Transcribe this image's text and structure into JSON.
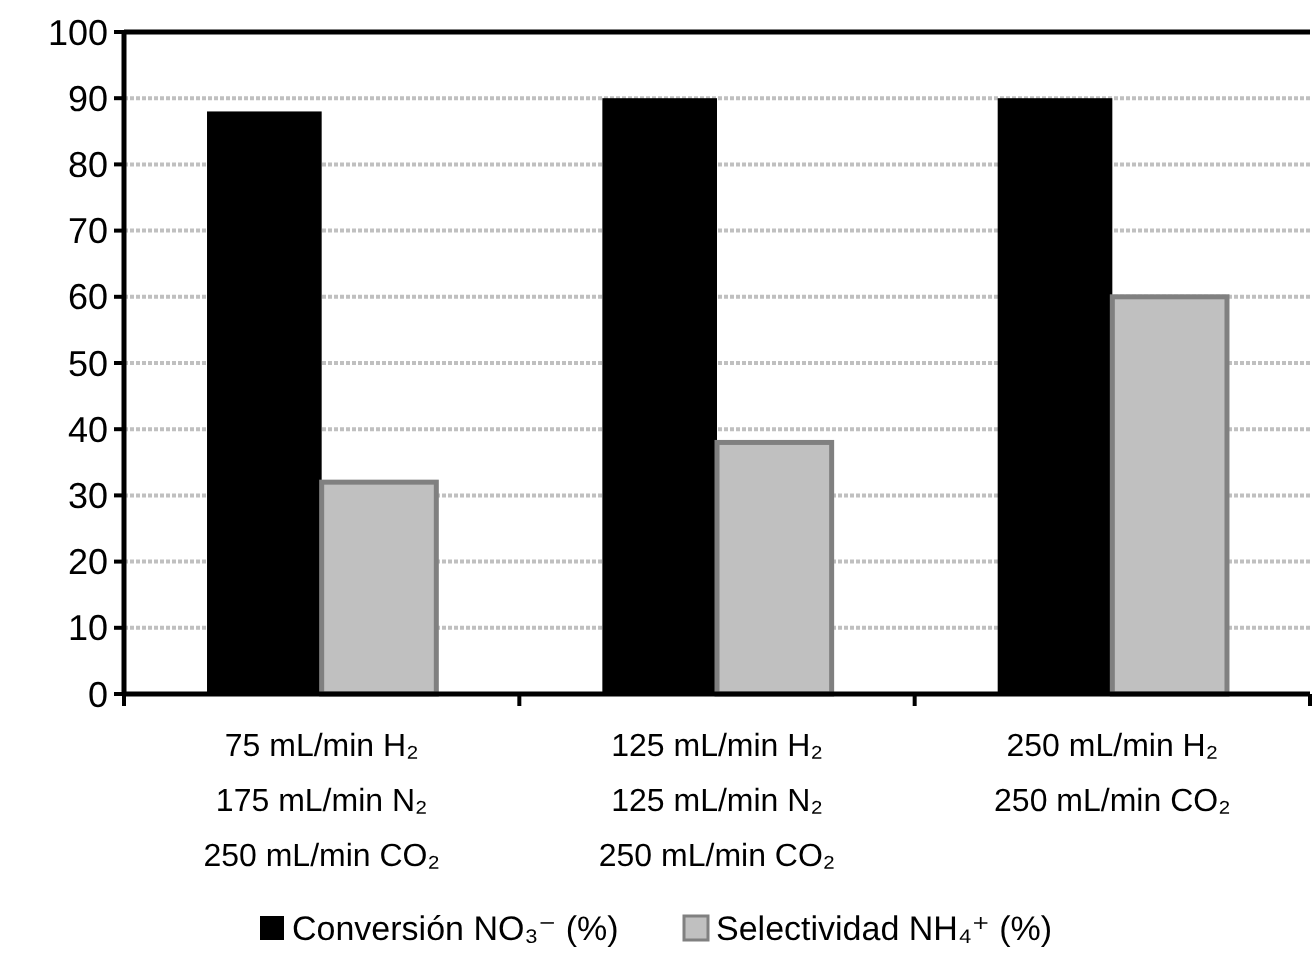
{
  "chart_data": {
    "type": "bar",
    "categories": [
      "75 mL/min H₂\n175 mL/min N₂\n250 mL/min CO₂",
      "125 mL/min H₂\n125 mL/min N₂\n250 mL/min CO₂",
      "250 mL/min H₂\n250 mL/min CO₂"
    ],
    "series": [
      {
        "name": "Conversión NO₃⁻ (%)",
        "color": "#000000",
        "values": [
          88,
          90,
          90
        ]
      },
      {
        "name": "Selectividad NH₄⁺ (%)",
        "color": "#c0c0c0",
        "values": [
          32,
          38,
          60
        ]
      }
    ],
    "ylim": [
      0,
      100
    ],
    "yticks": [
      0,
      10,
      20,
      30,
      40,
      50,
      60,
      70,
      80,
      90,
      100
    ],
    "grid": "y",
    "legend": "bottom"
  }
}
